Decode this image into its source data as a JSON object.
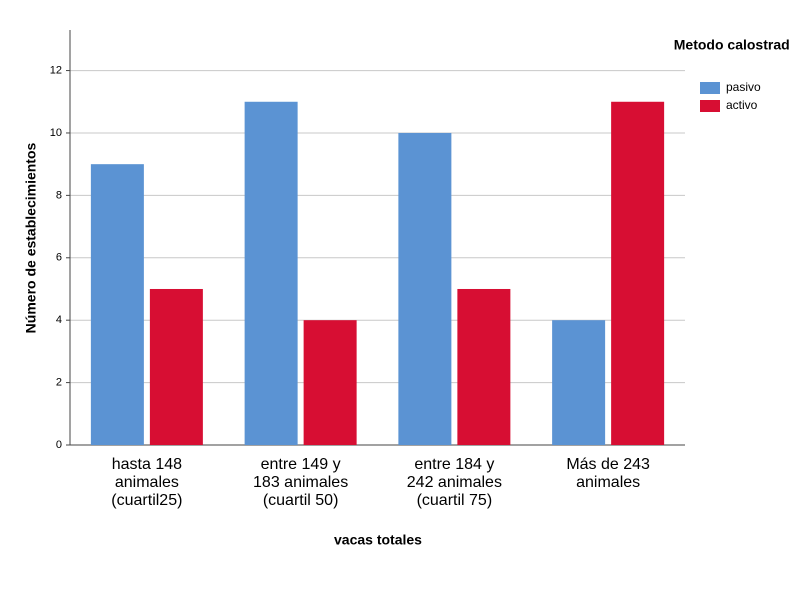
{
  "chart_data": {
    "type": "bar",
    "categories": [
      "hasta 148\nanimales\n(cuartil25)",
      "entre 149 y\n183 animales\n(cuartil 50)",
      "entre 184 y\n242 animales\n(cuartil 75)",
      "Más de 243\nanimales"
    ],
    "series": [
      {
        "name": "pasivo",
        "color": "#5b93d3",
        "values": [
          9,
          11,
          10,
          4
        ]
      },
      {
        "name": "activo",
        "color": "#d70e33",
        "values": [
          5,
          4,
          5,
          11
        ]
      }
    ],
    "xlabel": "vacas totales",
    "ylabel": "Número de establecimientos",
    "legend_title": "Metodo calostrado",
    "legend_position": "top-right",
    "ylim": [
      0,
      13.3
    ],
    "yticks": [
      0,
      2,
      4,
      6,
      8,
      10,
      12
    ],
    "grid": true
  }
}
